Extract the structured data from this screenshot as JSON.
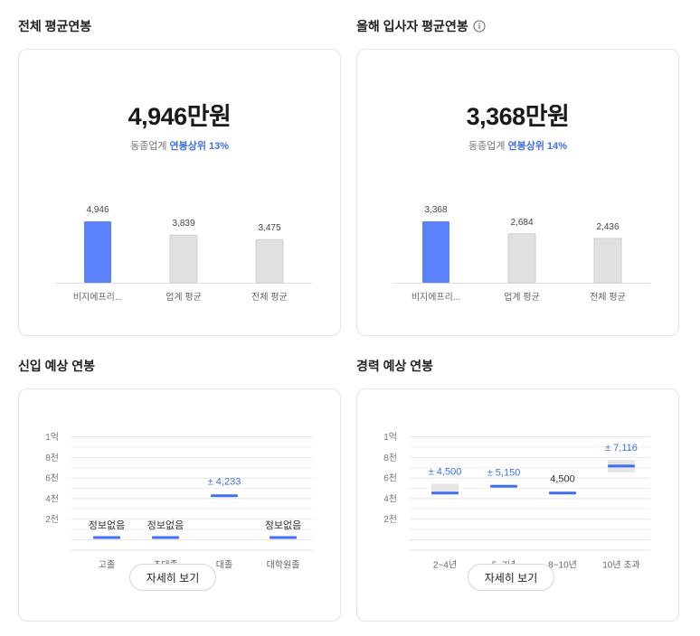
{
  "overall": {
    "title": "전체 평균연봉",
    "value": "4,946만원",
    "compare_prefix": "동종업계",
    "compare_highlight": "연봉상위 13%",
    "chart_data": {
      "type": "bar",
      "categories": [
        "비지에프리...",
        "업계 평균",
        "전체 평균"
      ],
      "values": [
        4946,
        3839,
        3475
      ],
      "value_labels": [
        "4,946",
        "3,839",
        "3,475"
      ],
      "colors": [
        "#5b82fb",
        "#e0e0e0",
        "#e0e0e0"
      ]
    }
  },
  "newhire": {
    "title": "올해 입사자 평균연봉",
    "info_icon": "info-icon",
    "value": "3,368만원",
    "compare_prefix": "동종업계",
    "compare_highlight": "연봉상위 14%",
    "chart_data": {
      "type": "bar",
      "categories": [
        "비지에프리...",
        "업계 평균",
        "전체 평균"
      ],
      "values": [
        3368,
        2684,
        2436
      ],
      "value_labels": [
        "3,368",
        "2,684",
        "2,436"
      ],
      "colors": [
        "#5b82fb",
        "#e0e0e0",
        "#e0e0e0"
      ]
    }
  },
  "entry": {
    "title": "신입 예상 연봉",
    "button_label": "자세히 보기",
    "chart_data": {
      "type": "range",
      "y_ticks": [
        "1억",
        "8천",
        "6천",
        "4천",
        "2천"
      ],
      "ylim": [
        0,
        10000
      ],
      "categories": [
        "고졸",
        "초대졸",
        "대졸",
        "대학원졸"
      ],
      "values": [
        null,
        null,
        4233,
        null
      ],
      "labels": [
        "정보없음",
        "정보없음",
        "± 4,233",
        "정보없음"
      ]
    }
  },
  "career": {
    "title": "경력 예상 연봉",
    "button_label": "자세히 보기",
    "chart_data": {
      "type": "range",
      "y_ticks": [
        "1억",
        "8천",
        "6천",
        "4천",
        "2천"
      ],
      "ylim": [
        0,
        10000
      ],
      "categories": [
        "2~4년",
        "5~7년",
        "8~10년",
        "10년 초과"
      ],
      "values": [
        4500,
        5150,
        4500,
        7116
      ],
      "labels": [
        "± 4,500",
        "± 5,150",
        "4,500",
        "± 7,116"
      ],
      "ranges": [
        [
          4500,
          5400
        ],
        null,
        null,
        [
          6500,
          7700
        ]
      ]
    }
  }
}
